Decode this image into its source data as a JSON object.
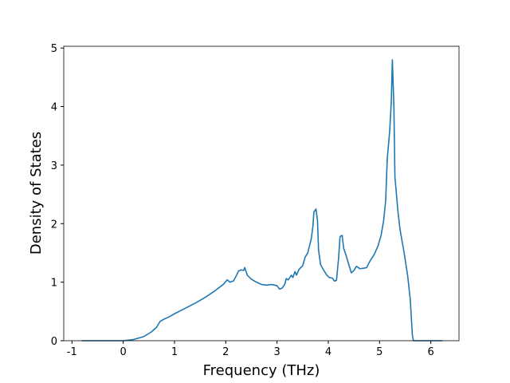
{
  "chart_data": {
    "type": "line",
    "xlabel": "Frequency (THz)",
    "ylabel": "Density of States",
    "xlim": [
      -1.16,
      6.55
    ],
    "ylim": [
      0,
      5.03
    ],
    "xticks": [
      -1,
      0,
      1,
      2,
      3,
      4,
      5,
      6
    ],
    "yticks": [
      0,
      1,
      2,
      3,
      4,
      5
    ],
    "series": [
      {
        "color": "#1f77b4",
        "x": [
          -0.81,
          0,
          0.2,
          0.4,
          0.55,
          0.65,
          0.72,
          0.8,
          0.9,
          1.0,
          1.2,
          1.4,
          1.6,
          1.8,
          1.95,
          2.03,
          2.08,
          2.15,
          2.2,
          2.25,
          2.3,
          2.35,
          2.37,
          2.42,
          2.5,
          2.6,
          2.7,
          2.8,
          2.9,
          3.0,
          3.05,
          3.1,
          3.15,
          3.18,
          3.22,
          3.28,
          3.31,
          3.35,
          3.38,
          3.43,
          3.5,
          3.55,
          3.6,
          3.67,
          3.7,
          3.72,
          3.76,
          3.79,
          3.81,
          3.85,
          3.9,
          3.97,
          4.02,
          4.08,
          4.12,
          4.16,
          4.2,
          4.23,
          4.27,
          4.3,
          4.35,
          4.4,
          4.45,
          4.5,
          4.55,
          4.62,
          4.7,
          4.75,
          4.8,
          4.9,
          4.97,
          5.03,
          5.08,
          5.12,
          5.15,
          5.2,
          5.23,
          5.25,
          5.28,
          5.3,
          5.36,
          5.4,
          5.48,
          5.55,
          5.6,
          5.62,
          5.64,
          5.66,
          6.23
        ],
        "values": [
          0,
          0,
          0.02,
          0.07,
          0.15,
          0.23,
          0.33,
          0.37,
          0.41,
          0.46,
          0.55,
          0.64,
          0.74,
          0.86,
          0.96,
          1.04,
          1.0,
          1.02,
          1.1,
          1.19,
          1.21,
          1.2,
          1.25,
          1.12,
          1.05,
          1.0,
          0.96,
          0.95,
          0.96,
          0.94,
          0.88,
          0.9,
          0.96,
          1.06,
          1.04,
          1.12,
          1.08,
          1.18,
          1.12,
          1.22,
          1.28,
          1.43,
          1.5,
          1.75,
          1.95,
          2.2,
          2.25,
          2.05,
          1.55,
          1.3,
          1.22,
          1.12,
          1.08,
          1.07,
          1.02,
          1.03,
          1.4,
          1.78,
          1.8,
          1.58,
          1.45,
          1.3,
          1.16,
          1.2,
          1.27,
          1.23,
          1.24,
          1.25,
          1.34,
          1.48,
          1.62,
          1.8,
          2.05,
          2.4,
          3.1,
          3.6,
          4.1,
          4.8,
          4.0,
          2.8,
          2.2,
          1.9,
          1.5,
          1.1,
          0.7,
          0.4,
          0.1,
          0,
          0
        ]
      }
    ]
  }
}
